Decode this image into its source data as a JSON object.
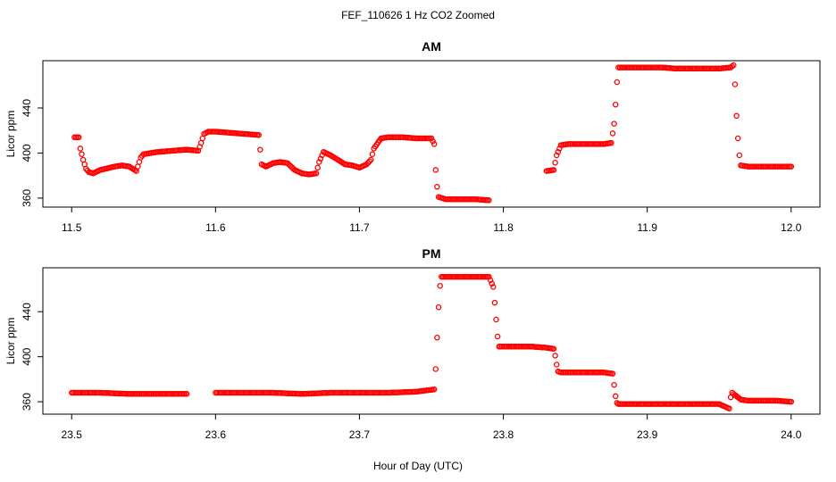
{
  "figure": {
    "title": "FEF_110626  1 Hz CO2 Zoomed",
    "xlabel": "Hour of Day (UTC)"
  },
  "colors": {
    "points": "#ff0000",
    "axis": "#000000"
  },
  "chart_data": [
    {
      "type": "scatter",
      "title": "AM",
      "xlabel": "Hour of Day (UTC)",
      "ylabel": "Licor ppm",
      "xlim": [
        11.48,
        12.02
      ],
      "ylim": [
        352,
        482
      ],
      "xticks": [
        "11.5",
        "11.6",
        "11.7",
        "11.8",
        "11.9",
        "12.0"
      ],
      "yticks": [
        "360",
        "400",
        "440"
      ],
      "marker": "open-circle",
      "grid": false,
      "series": [
        {
          "x": [
            11.502,
            11.505,
            11.506,
            11.508,
            11.51,
            11.512,
            11.515,
            11.52,
            11.53,
            11.535,
            11.54,
            11.545,
            11.548,
            11.55,
            11.56,
            11.57,
            11.58,
            11.588,
            11.59,
            11.592,
            11.595,
            11.6,
            11.61,
            11.62,
            11.63,
            11.632,
            11.635,
            11.64,
            11.645,
            11.65,
            11.655,
            11.66,
            11.665,
            11.67,
            11.672,
            11.675,
            11.68,
            11.685,
            11.69,
            11.695,
            11.7,
            11.705,
            11.708,
            11.71,
            11.715,
            11.72,
            11.73,
            11.74,
            11.75,
            11.752,
            11.753,
            11.754,
            11.755,
            11.76,
            11.77,
            11.78,
            11.79,
            11.83,
            11.835,
            11.837,
            11.84,
            11.845,
            11.85,
            11.86,
            11.87,
            11.875,
            11.877,
            11.878,
            11.879,
            11.88,
            11.885,
            11.89,
            11.9,
            11.91,
            11.92,
            11.93,
            11.94,
            11.95,
            11.958,
            11.96,
            11.961,
            11.962,
            11.963,
            11.964,
            11.965,
            11.97,
            11.98,
            11.99,
            12.0
          ],
          "y": [
            414,
            414,
            404,
            394,
            386,
            383,
            382,
            385,
            388,
            389,
            388,
            384,
            396,
            399,
            401,
            402,
            403,
            402,
            409,
            417,
            419,
            419,
            418,
            417,
            416,
            390,
            388,
            391,
            392,
            391,
            385,
            382,
            381,
            382,
            392,
            401,
            398,
            394,
            390,
            389,
            387,
            390,
            394,
            404,
            413,
            414,
            414,
            413,
            413,
            408,
            385,
            370,
            361,
            359,
            359,
            359,
            358,
            384,
            385,
            398,
            407,
            408,
            408,
            408,
            408,
            409,
            426,
            443,
            463,
            476,
            476,
            476,
            476,
            476,
            475,
            475,
            475,
            475,
            476,
            478,
            461,
            433,
            413,
            398,
            389,
            388,
            388,
            388,
            388
          ]
        }
      ]
    },
    {
      "type": "scatter",
      "title": "PM",
      "xlabel": "Hour of Day (UTC)",
      "ylabel": "Licor ppm",
      "xlim": [
        23.48,
        24.02
      ],
      "ylim": [
        349,
        479
      ],
      "xticks": [
        "23.5",
        "23.6",
        "23.7",
        "23.8",
        "23.9",
        "24.0"
      ],
      "yticks": [
        "360",
        "400",
        "440"
      ],
      "marker": "open-circle",
      "grid": false,
      "series": [
        {
          "x": [
            23.5,
            23.52,
            23.54,
            23.56,
            23.58,
            23.6,
            23.62,
            23.64,
            23.66,
            23.68,
            23.7,
            23.72,
            23.74,
            23.752,
            23.753,
            23.754,
            23.755,
            23.756,
            23.757,
            23.76,
            23.77,
            23.78,
            23.79,
            23.793,
            23.794,
            23.795,
            23.796,
            23.797,
            23.8,
            23.81,
            23.82,
            23.83,
            23.835,
            23.836,
            23.837,
            23.838,
            23.84,
            23.85,
            23.86,
            23.87,
            23.876,
            23.877,
            23.878,
            23.879,
            23.88,
            23.89,
            23.9,
            23.91,
            23.92,
            23.93,
            23.94,
            23.95,
            23.957,
            23.958,
            23.959,
            23.96,
            23.965,
            23.97,
            23.98,
            23.99,
            24.0
          ],
          "y": [
            368,
            368,
            367,
            367,
            367,
            368,
            368,
            368,
            367,
            368,
            368,
            368,
            369,
            371,
            389,
            417,
            444,
            463,
            471,
            471,
            471,
            471,
            471,
            462,
            448,
            433,
            418,
            409,
            409,
            409,
            409,
            408,
            407,
            401,
            393,
            387,
            386,
            386,
            386,
            386,
            385,
            375,
            365,
            359,
            358,
            358,
            358,
            358,
            358,
            358,
            358,
            358,
            354,
            364,
            368,
            367,
            362,
            361,
            361,
            361,
            360
          ]
        }
      ]
    }
  ]
}
